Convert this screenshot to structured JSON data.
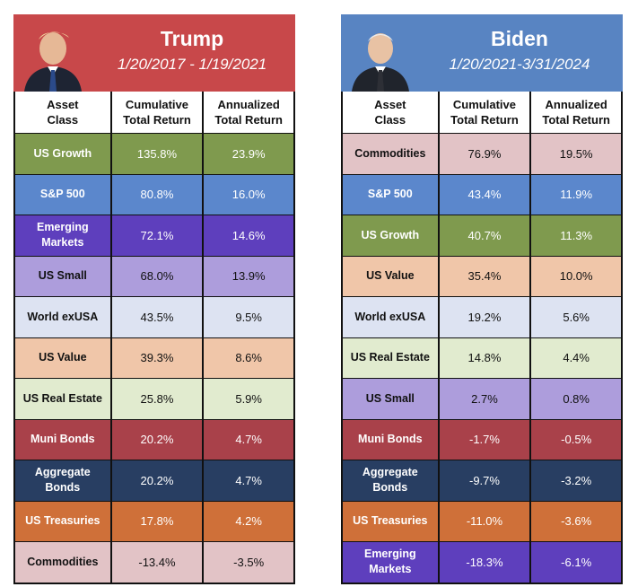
{
  "column_headers": {
    "asset_class": "Asset\nClass",
    "cumulative": "Cumulative\nTotal Return",
    "annualized": "Annualized\nTotal Return"
  },
  "chart_data": [
    {
      "type": "table",
      "title": "Trump",
      "subtitle": "1/20/2017 - 1/19/2021",
      "header_color": "#c8484a",
      "columns": [
        "Asset Class",
        "Cumulative Total Return",
        "Annualized Total Return"
      ],
      "rows": [
        {
          "asset": "US Growth",
          "cumulative": "135.8%",
          "annualized": "23.9%",
          "color": "#7f9a4e",
          "text": "light"
        },
        {
          "asset": "S&P 500",
          "cumulative": "80.8%",
          "annualized": "16.0%",
          "color": "#5b87cc",
          "text": "light"
        },
        {
          "asset": "Emerging\nMarkets",
          "cumulative": "72.1%",
          "annualized": "14.6%",
          "color": "#5e3fbd",
          "text": "light"
        },
        {
          "asset": "US Small",
          "cumulative": "68.0%",
          "annualized": "13.9%",
          "color": "#ad9ddc",
          "text": "dark"
        },
        {
          "asset": "World exUSA",
          "cumulative": "43.5%",
          "annualized": "9.5%",
          "color": "#dde3f2",
          "text": "dark"
        },
        {
          "asset": "US Value",
          "cumulative": "39.3%",
          "annualized": "8.6%",
          "color": "#f0c6a9",
          "text": "dark"
        },
        {
          "asset": "US Real Estate",
          "cumulative": "25.8%",
          "annualized": "5.9%",
          "color": "#e1ebcf",
          "text": "dark"
        },
        {
          "asset": "Muni Bonds",
          "cumulative": "20.2%",
          "annualized": "4.7%",
          "color": "#a9414a",
          "text": "light"
        },
        {
          "asset": "Aggregate\nBonds",
          "cumulative": "20.2%",
          "annualized": "4.7%",
          "color": "#283e62",
          "text": "light"
        },
        {
          "asset": "US Treasuries",
          "cumulative": "17.8%",
          "annualized": "4.2%",
          "color": "#cf7039",
          "text": "light"
        },
        {
          "asset": "Commodities",
          "cumulative": "-13.4%",
          "annualized": "-3.5%",
          "color": "#e2c3c6",
          "text": "dark"
        }
      ]
    },
    {
      "type": "table",
      "title": "Biden",
      "subtitle": "1/20/2021-3/31/2024",
      "header_color": "#5884c2",
      "columns": [
        "Asset Class",
        "Cumulative Total Return",
        "Annualized Total Return"
      ],
      "rows": [
        {
          "asset": "Commodities",
          "cumulative": "76.9%",
          "annualized": "19.5%",
          "color": "#e2c3c6",
          "text": "dark"
        },
        {
          "asset": "S&P 500",
          "cumulative": "43.4%",
          "annualized": "11.9%",
          "color": "#5b87cc",
          "text": "light"
        },
        {
          "asset": "US Growth",
          "cumulative": "40.7%",
          "annualized": "11.3%",
          "color": "#7f9a4e",
          "text": "light"
        },
        {
          "asset": "US Value",
          "cumulative": "35.4%",
          "annualized": "10.0%",
          "color": "#f0c6a9",
          "text": "dark"
        },
        {
          "asset": "World exUSA",
          "cumulative": "19.2%",
          "annualized": "5.6%",
          "color": "#dde3f2",
          "text": "dark"
        },
        {
          "asset": "US Real Estate",
          "cumulative": "14.8%",
          "annualized": "4.4%",
          "color": "#e1ebcf",
          "text": "dark"
        },
        {
          "asset": "US Small",
          "cumulative": "2.7%",
          "annualized": "0.8%",
          "color": "#ad9ddc",
          "text": "dark"
        },
        {
          "asset": "Muni Bonds",
          "cumulative": "-1.7%",
          "annualized": "-0.5%",
          "color": "#a9414a",
          "text": "light"
        },
        {
          "asset": "Aggregate\nBonds",
          "cumulative": "-9.7%",
          "annualized": "-3.2%",
          "color": "#283e62",
          "text": "light"
        },
        {
          "asset": "US Treasuries",
          "cumulative": "-11.0%",
          "annualized": "-3.6%",
          "color": "#cf7039",
          "text": "light"
        },
        {
          "asset": "Emerging\nMarkets",
          "cumulative": "-18.3%",
          "annualized": "-6.1%",
          "color": "#5e3fbd",
          "text": "light"
        }
      ]
    }
  ]
}
